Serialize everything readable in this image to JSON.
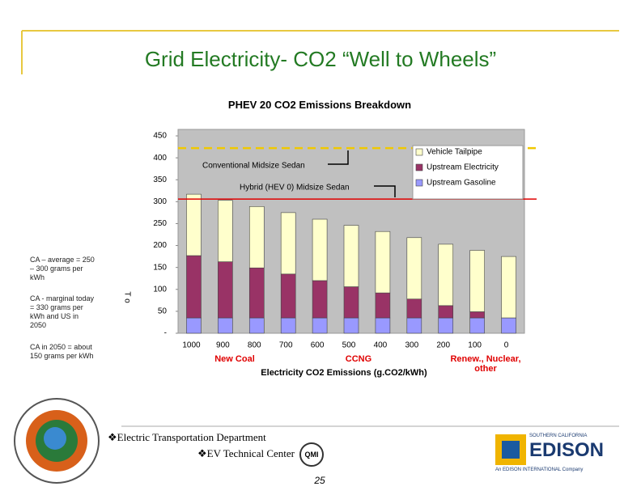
{
  "slide_title": "Grid Electricity- CO2 “Well to Wheels”",
  "side_notes": [
    "CA – average = 250 – 300 grams per kWh",
    "CA - marginal today = 330 grams per kWh and US in 2050",
    "CA in 2050 = about 150 grams per kWh"
  ],
  "footer": {
    "department": "❖Electric Transportation Department",
    "center": "❖EV Technical Center",
    "page_number": "25",
    "qmi_logo": "QMI",
    "edison_top": "SOUTHERN CALIFORNIA",
    "edison_name": "EDISON",
    "edison_sub": "An EDISON INTERNATIONAL Company"
  },
  "chart_data": {
    "type": "stacked_bar",
    "title": "PHEV 20 CO2 Emissions Breakdown",
    "x_label": "Electricity CO2 Emissions (g.CO2/kWh)",
    "y_label": "T o",
    "categories": [
      "1000",
      "900",
      "800",
      "700",
      "600",
      "500",
      "400",
      "300",
      "200",
      "100",
      "0"
    ],
    "series": [
      {
        "name": "Upstream Gasoline",
        "color": "#9999ff",
        "values": [
          35,
          35,
          35,
          35,
          35,
          35,
          35,
          35,
          35,
          35,
          35
        ]
      },
      {
        "name": "Upstream Electricity",
        "color": "#993366",
        "values": [
          142,
          128,
          114,
          100,
          85,
          71,
          57,
          43,
          28,
          14,
          0
        ]
      },
      {
        "name": "Vehicle Tailpipe",
        "color": "#ffffcc",
        "values": [
          140,
          140,
          140,
          140,
          140,
          140,
          140,
          140,
          140,
          140,
          140
        ]
      }
    ],
    "ylim": [
      0,
      450
    ],
    "yticks": [
      {
        "value": 0,
        "label": "-"
      },
      50,
      100,
      150,
      200,
      250,
      300,
      350,
      400,
      450
    ],
    "reference_lines": [
      {
        "value": 422,
        "color": "#f0c800",
        "label": "Conventional Midsize Sedan"
      },
      {
        "value": 306,
        "color": "#e00000",
        "label": "Hybrid (HEV 0) Midsize Sedan"
      }
    ],
    "group_labels": [
      "New Coal",
      "CCNG",
      "Renew., Nuclear, other"
    ]
  }
}
